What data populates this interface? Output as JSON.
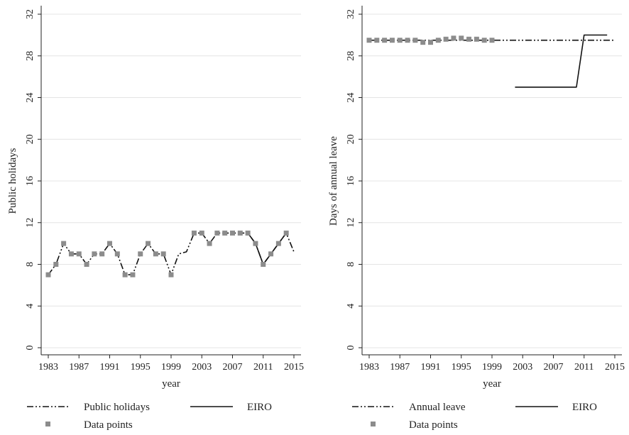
{
  "chart_data": [
    {
      "type": "line",
      "xlabel": "year",
      "ylabel": "Public holidays",
      "xlim": [
        1983,
        2015
      ],
      "ylim": [
        0,
        32
      ],
      "xticks": [
        1983,
        1987,
        1991,
        1995,
        1999,
        2003,
        2007,
        2011,
        2015
      ],
      "yticks": [
        0,
        4,
        8,
        12,
        16,
        20,
        24,
        28,
        32
      ],
      "grid": true,
      "legend_position": "bottom",
      "series": [
        {
          "name": "Public holidays",
          "style": "dash-dot",
          "color": "#111111",
          "x": [
            1983,
            1984,
            1985,
            1986,
            1987,
            1988,
            1989,
            1990,
            1991,
            1992,
            1993,
            1994,
            1995,
            1996,
            1997,
            1998,
            1999,
            2000,
            2001,
            2002,
            2003,
            2004,
            2005,
            2006,
            2007,
            2008,
            2009,
            2010,
            2011,
            2012,
            2013,
            2014,
            2015
          ],
          "y": [
            7,
            8,
            10,
            9,
            9,
            8,
            9,
            9,
            10,
            9,
            7,
            7,
            9,
            10,
            9,
            9,
            7,
            9,
            9.2,
            11,
            11,
            10,
            11,
            11,
            11,
            11,
            11,
            10,
            8,
            9,
            10,
            11,
            9.2
          ]
        },
        {
          "name": "EIRO",
          "style": "solid",
          "color": "#111111",
          "x": [
            2009,
            2010,
            2011,
            2012,
            2013,
            2014
          ],
          "y": [
            11,
            10,
            8,
            9,
            10,
            11
          ]
        },
        {
          "name": "Data points",
          "style": "marker",
          "color": "#8c8c8c",
          "x": [
            1983,
            1984,
            1985,
            1986,
            1987,
            1988,
            1989,
            1990,
            1991,
            1992,
            1993,
            1994,
            1995,
            1996,
            1997,
            1998,
            1999,
            2002,
            2003,
            2004,
            2005,
            2006,
            2007,
            2008,
            2009,
            2010,
            2011,
            2012,
            2013,
            2014
          ],
          "y": [
            7,
            8,
            10,
            9,
            9,
            8,
            9,
            9,
            10,
            9,
            7,
            7,
            9,
            10,
            9,
            9,
            7,
            11,
            11,
            10,
            11,
            11,
            11,
            11,
            11,
            10,
            8,
            9,
            10,
            11
          ]
        }
      ]
    },
    {
      "type": "line",
      "xlabel": "year",
      "ylabel": "Days of annual leave",
      "xlim": [
        1983,
        2015
      ],
      "ylim": [
        0,
        32
      ],
      "xticks": [
        1983,
        1987,
        1991,
        1995,
        1999,
        2003,
        2007,
        2011,
        2015
      ],
      "yticks": [
        0,
        4,
        8,
        12,
        16,
        20,
        24,
        28,
        32
      ],
      "grid": true,
      "legend_position": "bottom",
      "series": [
        {
          "name": "Annual leave",
          "style": "dash-dot",
          "color": "#111111",
          "x": [
            1983,
            1999,
            2015
          ],
          "y": [
            29.5,
            29.5,
            29.5
          ]
        },
        {
          "name": "EIRO",
          "style": "solid",
          "color": "#111111",
          "x": [
            2002,
            2010,
            2011,
            2014
          ],
          "y": [
            25,
            25,
            30,
            30
          ]
        },
        {
          "name": "Data points",
          "style": "marker",
          "color": "#8c8c8c",
          "x": [
            1983,
            1984,
            1985,
            1986,
            1987,
            1988,
            1989,
            1990,
            1991,
            1992,
            1993,
            1994,
            1995,
            1996,
            1997,
            1998,
            1999
          ],
          "y": [
            29.5,
            29.5,
            29.5,
            29.5,
            29.5,
            29.5,
            29.5,
            29.3,
            29.3,
            29.5,
            29.6,
            29.7,
            29.7,
            29.6,
            29.6,
            29.5,
            29.5
          ]
        }
      ]
    }
  ]
}
